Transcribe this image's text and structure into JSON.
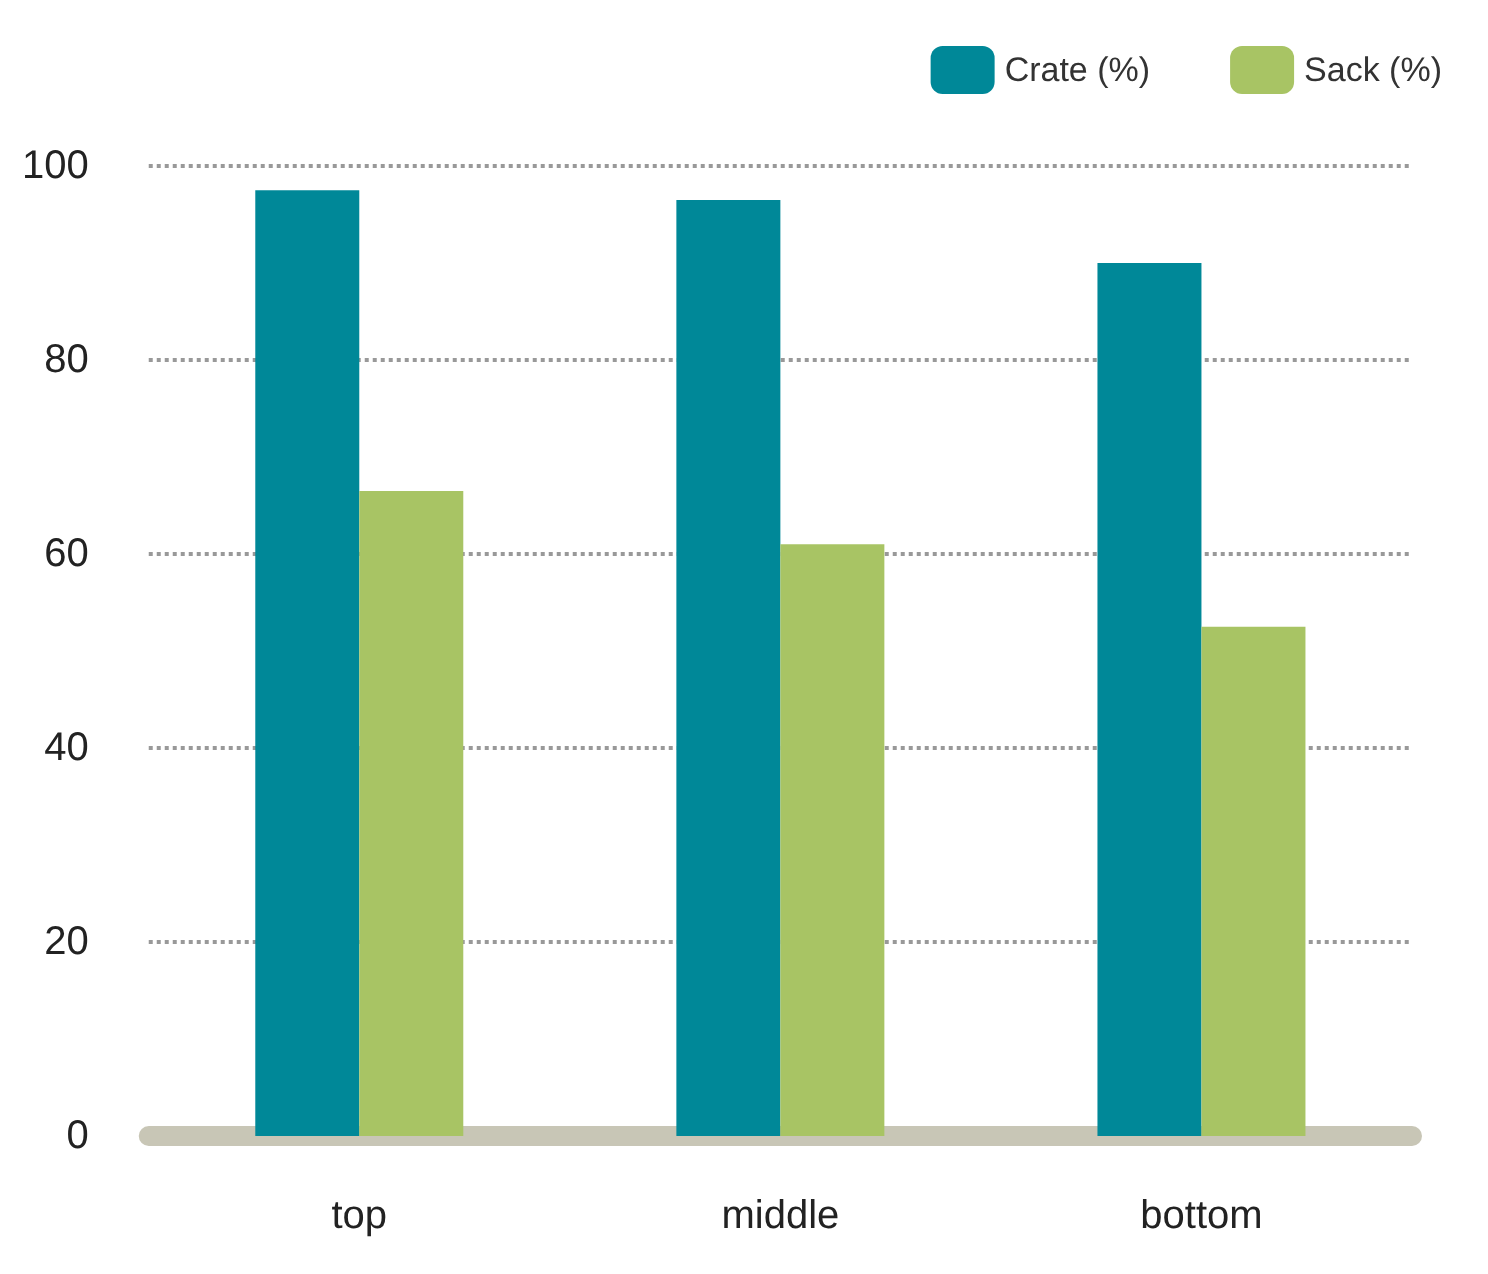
{
  "chart_data": {
    "type": "bar",
    "categories": [
      "top",
      "middle",
      "bottom"
    ],
    "series": [
      {
        "name": "Crate (%)",
        "color": "#008898",
        "values": [
          97.5,
          96.5,
          90
        ]
      },
      {
        "name": "Sack (%)",
        "color": "#a8c464",
        "values": [
          66.5,
          61,
          52.5
        ]
      }
    ],
    "ylim": [
      0,
      100
    ],
    "yticks": [
      0,
      20,
      40,
      60,
      80,
      100
    ],
    "grid": "y",
    "legend": "top right"
  }
}
